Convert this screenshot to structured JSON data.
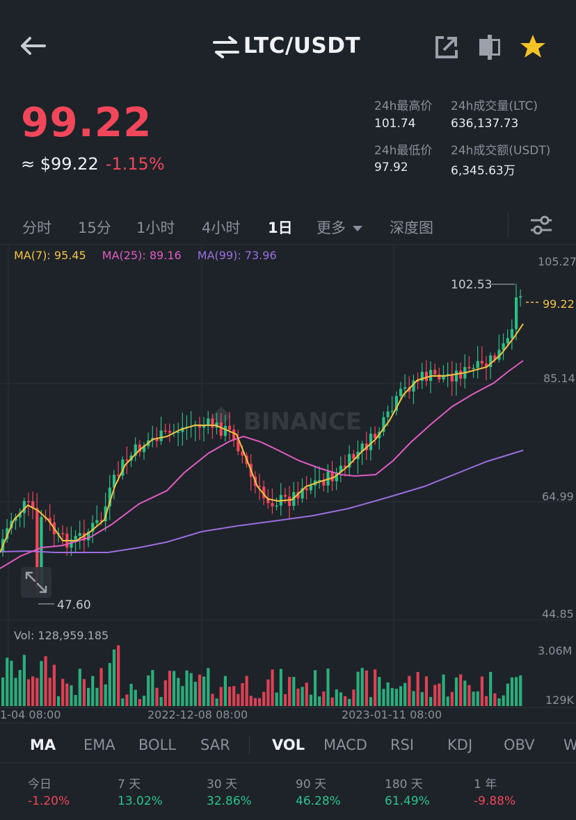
{
  "header": {
    "title": "LTC/USDT"
  },
  "price": {
    "last": "99.22",
    "usd": "≈ $99.22",
    "change": "-1.15%"
  },
  "stats": {
    "high_label": "24h最高价",
    "high_value": "101.74",
    "low_label": "24h最低价",
    "low_value": "97.92",
    "vol_label": "24h成交量(LTC)",
    "vol_value": "636,137.73",
    "amt_label": "24h成交额(USDT)",
    "amt_value": "6,345.63万"
  },
  "timeframes": {
    "t0": "分时",
    "t1": "15分",
    "t2": "1小时",
    "t3": "4小时",
    "t4": "1日",
    "more": "更多",
    "depth": "深度图"
  },
  "ma_legend": {
    "ma7": "MA(7): 95.45",
    "ma25": "MA(25): 89.16",
    "ma99": "MA(99): 73.96"
  },
  "chart_data": {
    "type": "candlestick",
    "y_ticks": [
      "105.27",
      "85.14",
      "64.99",
      "44.85"
    ],
    "x_ticks": [
      "1-04 08:00",
      "2022-12-08 08:00",
      "2023-01-11 08:00"
    ],
    "last_price_label": "99.22",
    "high_label": "102.53",
    "low_label": "47.60",
    "watermark": "BINANCE",
    "volume_label": "Vol: 128,959.185",
    "volume_ticks": [
      "3.06M",
      "129K"
    ],
    "colors": {
      "up": "#2ebd85",
      "down": "#f0475a",
      "ma7": "#f3c343",
      "ma25": "#e05ec1",
      "ma99": "#9b6fe0"
    }
  },
  "indicators": {
    "i0": "MA",
    "i1": "EMA",
    "i2": "BOLL",
    "i3": "SAR",
    "i4": "VOL",
    "i5": "MACD",
    "i6": "RSI",
    "i7": "KDJ",
    "i8": "OBV",
    "i9": "W"
  },
  "performance": {
    "p0_label": "今日",
    "p0_value": "-1.20%",
    "p1_label": "7 天",
    "p1_value": "13.02%",
    "p2_label": "30 天",
    "p2_value": "32.86%",
    "p3_label": "90 天",
    "p3_value": "46.28%",
    "p4_label": "180 天",
    "p4_value": "61.49%",
    "p5_label": "1 年",
    "p5_value": "-9.88%"
  }
}
